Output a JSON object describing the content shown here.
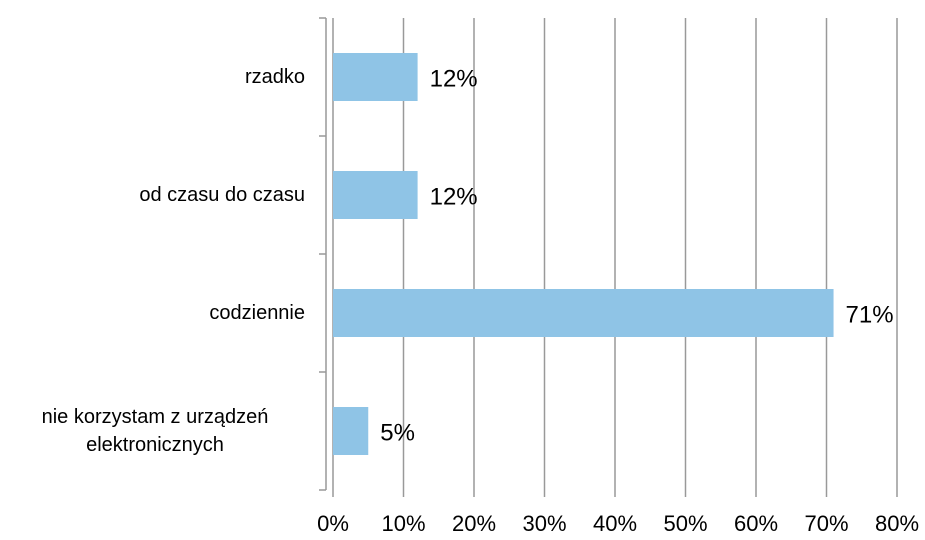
{
  "chart_data": {
    "type": "bar",
    "orientation": "horizontal",
    "categories": [
      "rzadko",
      "od czasu do czasu",
      "codziennie",
      "nie korzystam z urządzeń elektronicznych"
    ],
    "values": [
      12,
      12,
      71,
      5
    ],
    "value_labels": [
      "12%",
      "12%",
      "71%",
      "5%"
    ],
    "color": "#8fc4e6",
    "xlim": [
      0,
      80
    ],
    "xticks": [
      {
        "value": 0,
        "label": "0%"
      },
      {
        "value": 10,
        "label": "10%"
      },
      {
        "value": 20,
        "label": "20%"
      },
      {
        "value": 30,
        "label": "30%"
      },
      {
        "value": 40,
        "label": "40%"
      },
      {
        "value": 50,
        "label": "50%"
      },
      {
        "value": 60,
        "label": "60%"
      },
      {
        "value": 70,
        "label": "70%"
      },
      {
        "value": 80,
        "label": "80%"
      }
    ],
    "grid": true
  }
}
